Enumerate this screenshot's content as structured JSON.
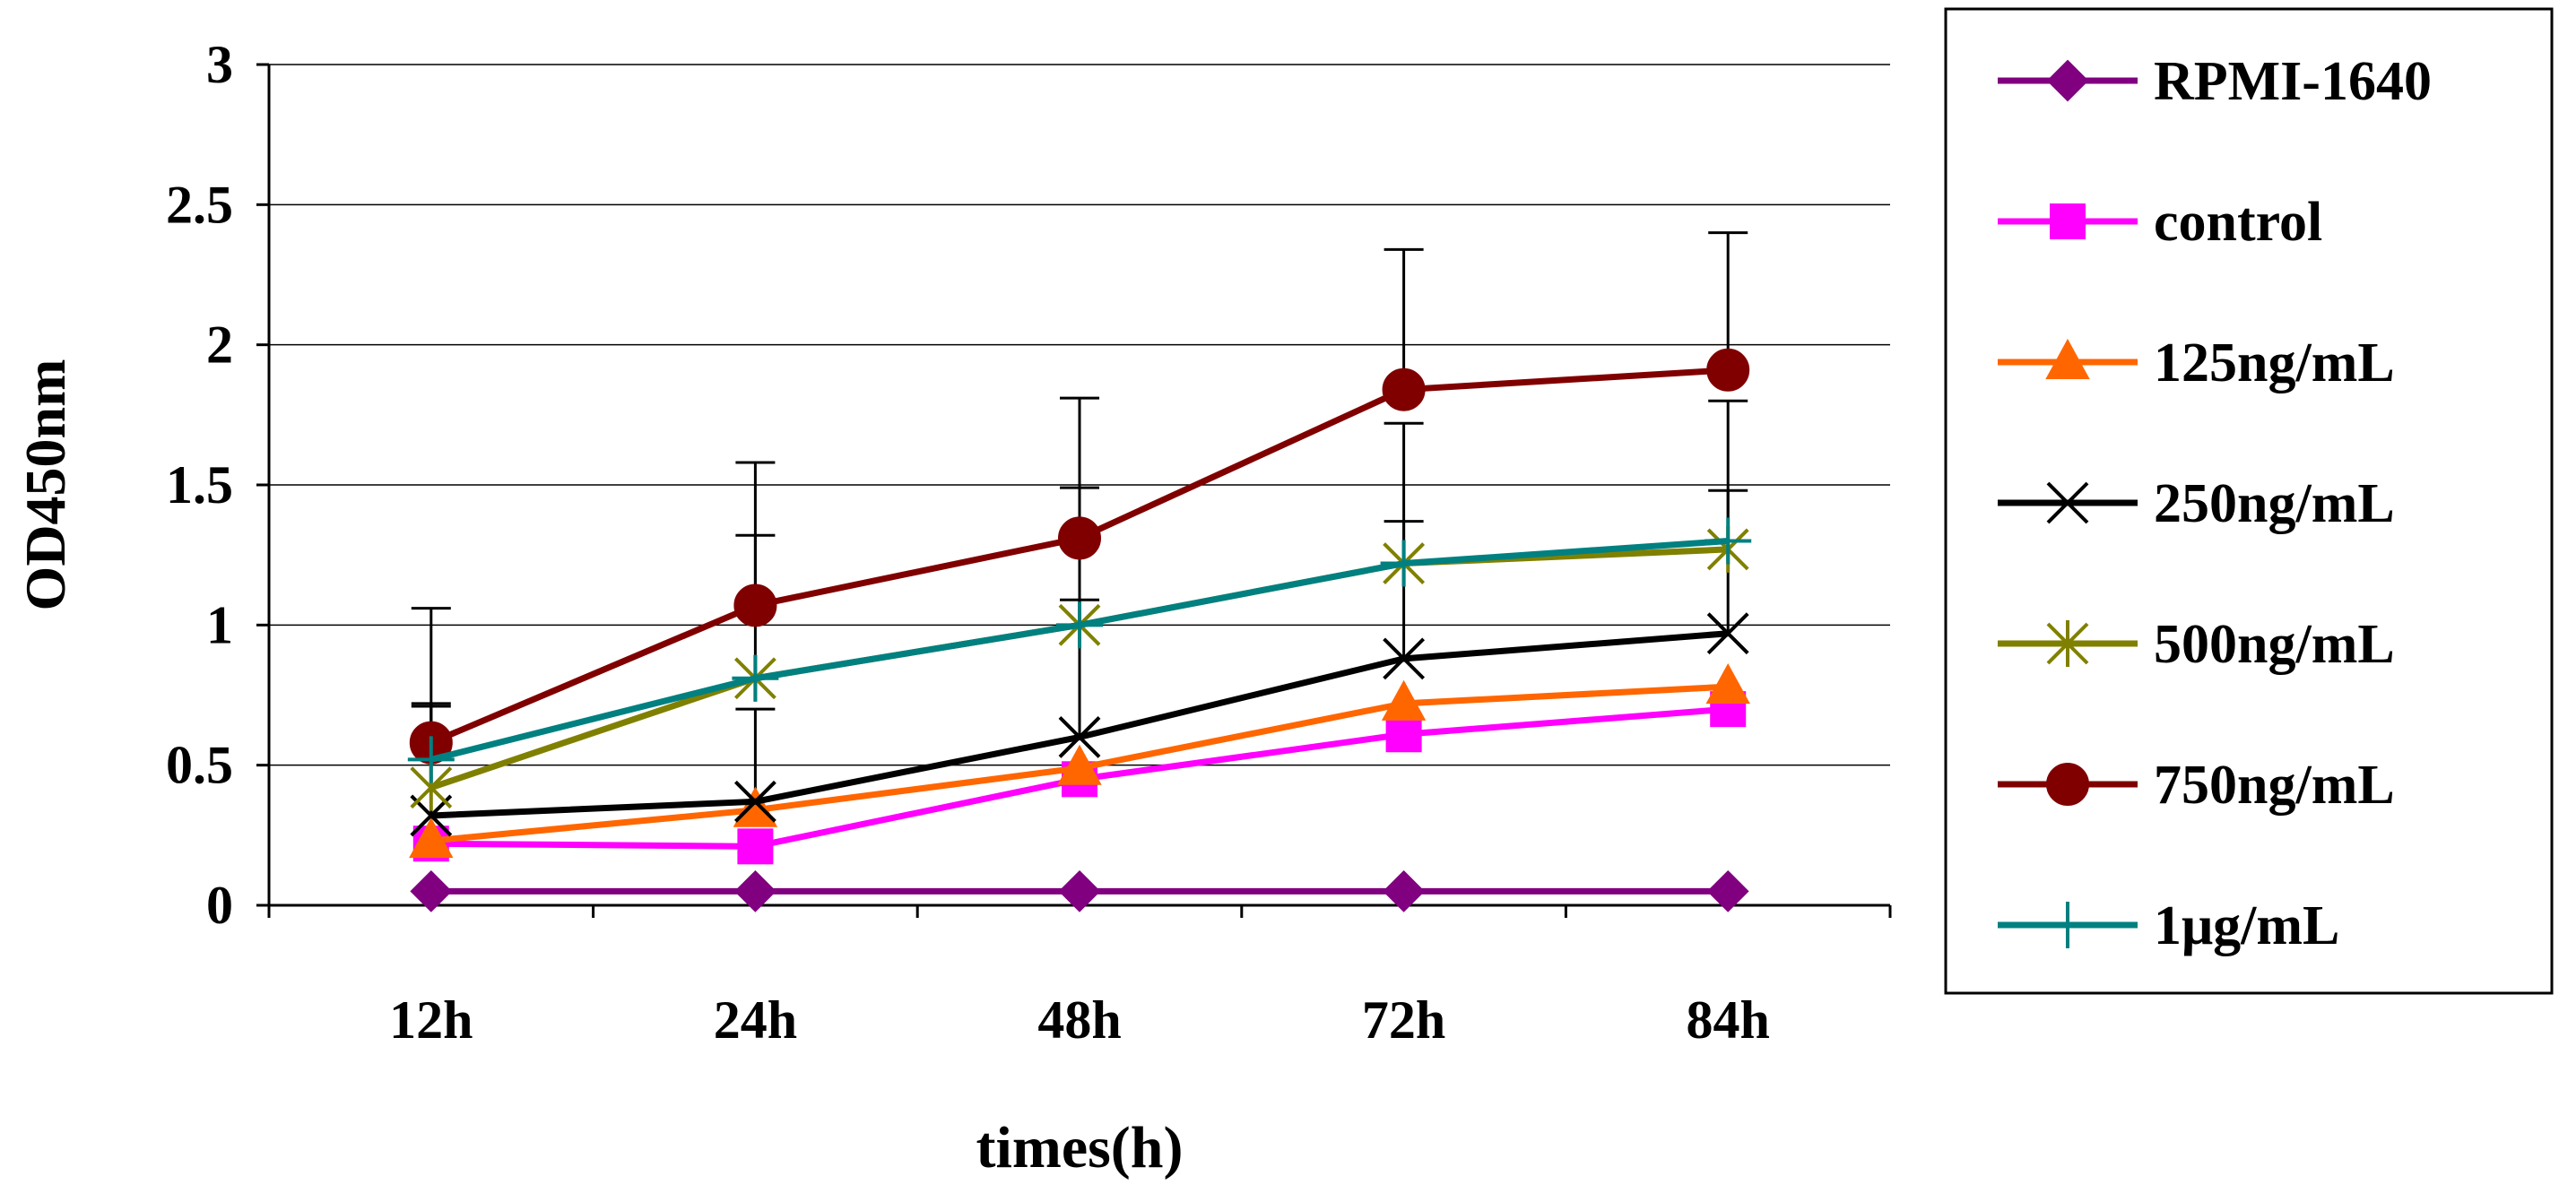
{
  "chart_data": {
    "type": "line",
    "xlabel": "times(h)",
    "ylabel": "OD450nm",
    "categories": [
      "12h",
      "24h",
      "48h",
      "72h",
      "84h"
    ],
    "ylim": [
      0,
      3
    ],
    "yticks": [
      0,
      0.5,
      1,
      1.5,
      2,
      2.5,
      3
    ],
    "ytick_labels": [
      "0",
      "0.5",
      "1",
      "1.5",
      "2",
      "2.5",
      "3"
    ],
    "grid": "horizontal",
    "legend_position": "right",
    "error_bars": "upper",
    "series": [
      {
        "name": "RPMI-1640",
        "color": "#800080",
        "marker": "diamond",
        "values": [
          0.05,
          0.05,
          0.05,
          0.05,
          0.05
        ],
        "errors": [
          0,
          0,
          0,
          0,
          0
        ]
      },
      {
        "name": "control",
        "color": "#FF00FF",
        "marker": "square",
        "values": [
          0.22,
          0.21,
          0.45,
          0.61,
          0.7
        ],
        "errors": [
          0,
          0,
          0,
          0,
          0
        ]
      },
      {
        "name": "125ng/mL",
        "color": "#FF6600",
        "marker": "triangle",
        "values": [
          0.23,
          0.34,
          0.49,
          0.72,
          0.78
        ],
        "errors": [
          0,
          0,
          0,
          0,
          0
        ]
      },
      {
        "name": "250ng/mL",
        "color": "#000000",
        "marker": "x",
        "values": [
          0.32,
          0.37,
          0.6,
          0.88,
          0.97
        ],
        "errors": [
          0.4,
          0.33,
          0.49,
          0.49,
          0.51
        ]
      },
      {
        "name": "500ng/mL",
        "color": "#808000",
        "marker": "star",
        "values": [
          0.42,
          0.81,
          1.0,
          1.22,
          1.27
        ],
        "errors": [
          0.29,
          0.51,
          0.49,
          0.5,
          0.53
        ]
      },
      {
        "name": "750ng/mL",
        "color": "#800000",
        "marker": "circle",
        "values": [
          0.58,
          1.07,
          1.31,
          1.84,
          1.91
        ],
        "errors": [
          0.48,
          0.51,
          0.5,
          0.5,
          0.49
        ]
      },
      {
        "name": "1μg/mL",
        "color": "#008080",
        "marker": "plus",
        "values": [
          0.52,
          0.81,
          1.0,
          1.22,
          1.3
        ],
        "errors": [
          0,
          0,
          0,
          0,
          0
        ]
      }
    ]
  }
}
